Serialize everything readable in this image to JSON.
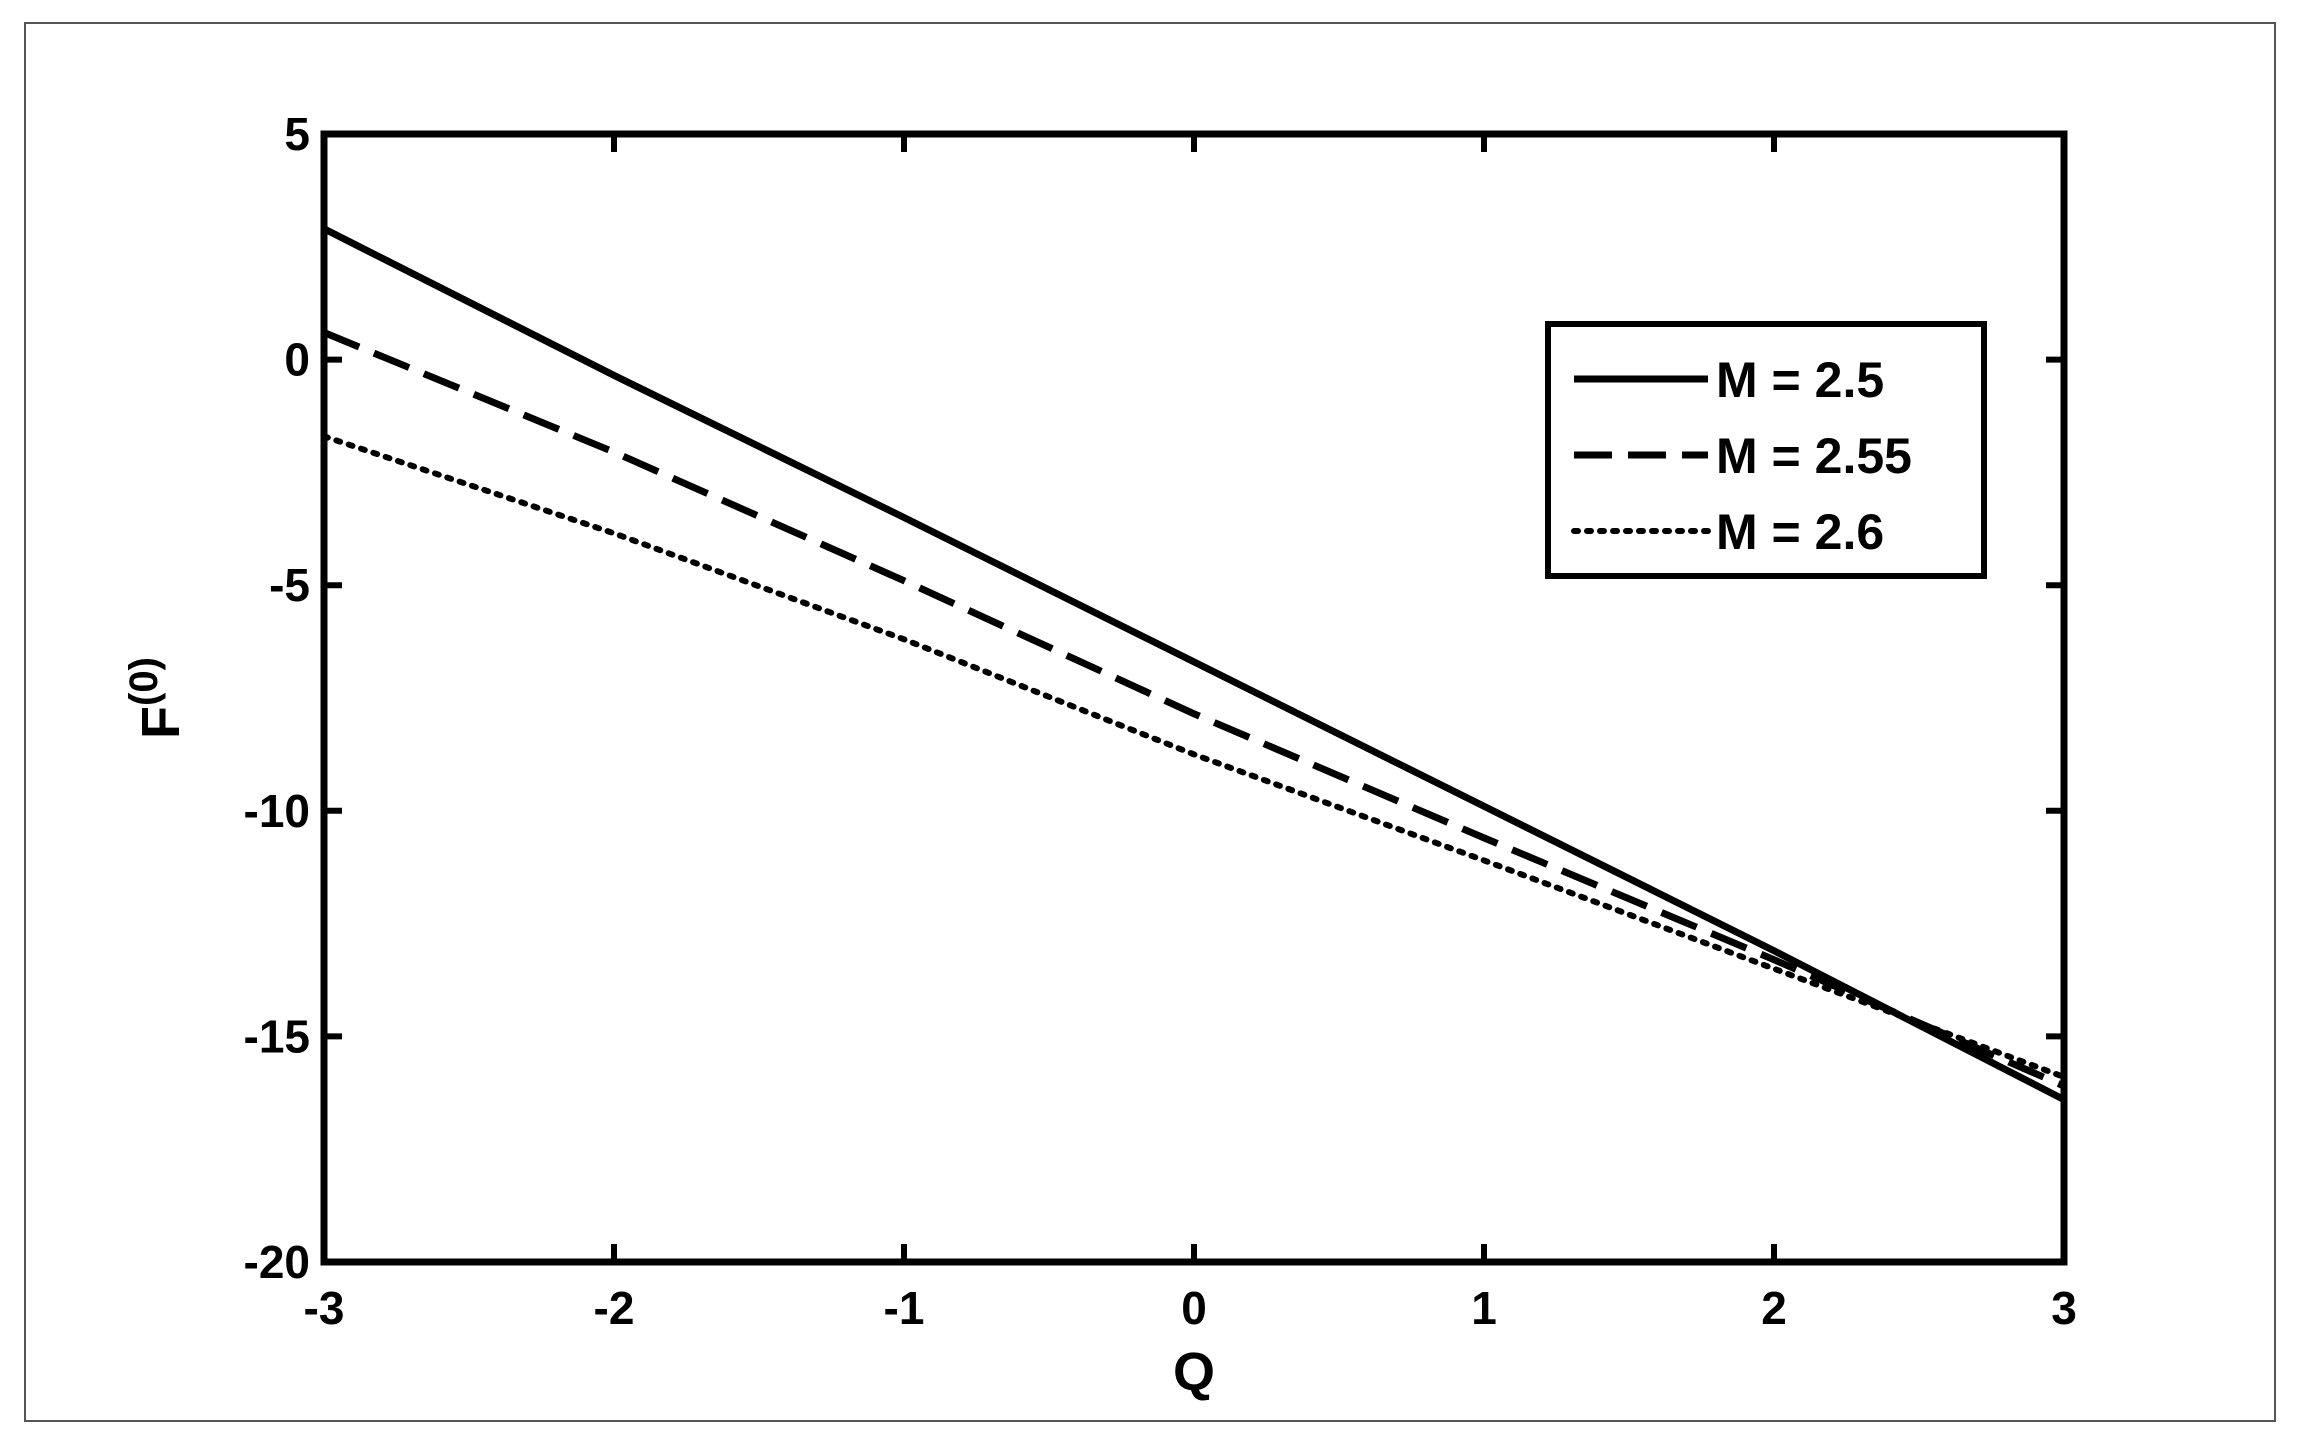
{
  "chart_data": {
    "type": "line",
    "title": "",
    "xlabel": "Q",
    "ylabel": {
      "base": "F",
      "superscript": "(0)"
    },
    "xlim": [
      -3,
      3
    ],
    "ylim": [
      -20,
      5
    ],
    "xticks": [
      -3,
      -2,
      -1,
      0,
      1,
      2,
      3
    ],
    "yticks": [
      5,
      0,
      -5,
      -10,
      -15,
      -20
    ],
    "xtick_labels": [
      "-3",
      "-2",
      "-1",
      "0",
      "1",
      "2",
      "3"
    ],
    "ytick_labels": [
      "5",
      "0",
      "-5",
      "-10",
      "-15",
      "-20"
    ],
    "grid": false,
    "legend_position": "top-right",
    "series": [
      {
        "name": "M = 2.5",
        "style": "solid",
        "x": [
          -3,
          -2,
          -1,
          0,
          1,
          2,
          3
        ],
        "y": [
          2.9,
          -0.35,
          -3.5,
          -6.7,
          -9.9,
          -13.1,
          -16.4
        ]
      },
      {
        "name": "M = 2.55",
        "style": "dashed",
        "x": [
          -3,
          -2,
          -1,
          0,
          1,
          2,
          3
        ],
        "y": [
          0.6,
          -2.05,
          -4.9,
          -7.85,
          -10.6,
          -13.3,
          -16.1
        ]
      },
      {
        "name": "M = 2.6",
        "style": "dotted",
        "x": [
          -3,
          -2,
          -1,
          0,
          1,
          2,
          3
        ],
        "y": [
          -1.7,
          -3.85,
          -6.2,
          -8.75,
          -11.1,
          -13.5,
          -15.9
        ]
      }
    ]
  }
}
